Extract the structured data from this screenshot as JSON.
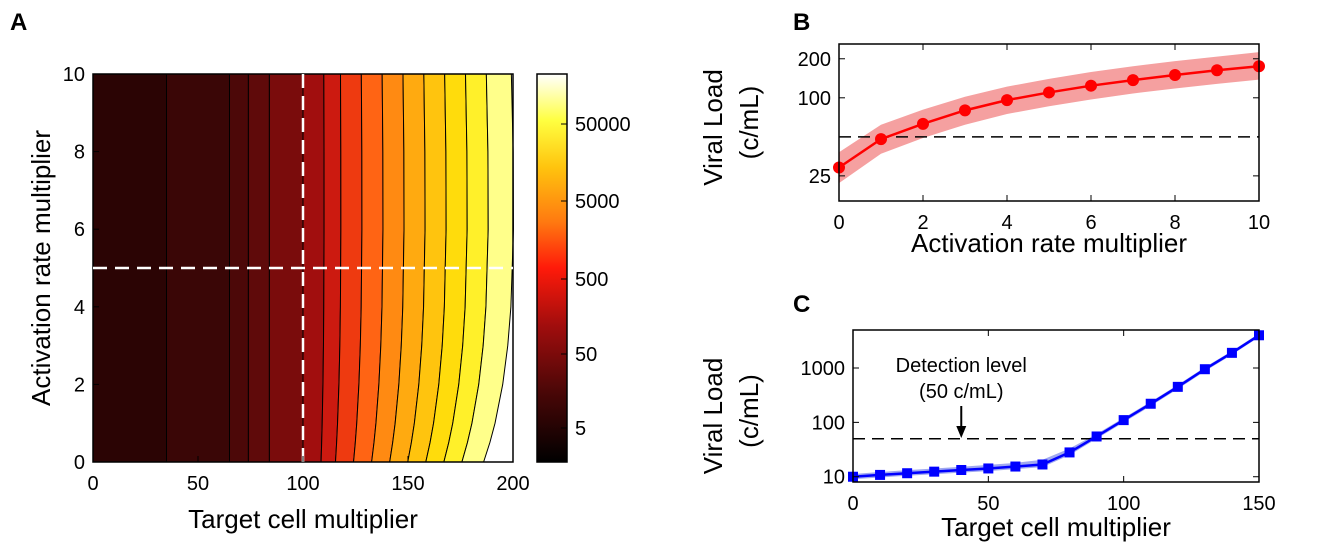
{
  "panels": [
    {
      "id": "A",
      "type": "heatmap",
      "xlabel": "Target cell multiplier",
      "ylabel": "Activation rate multiplier",
      "xlim": [
        0,
        200
      ],
      "ylim": [
        0,
        10
      ],
      "xticks": [
        "0",
        "50",
        "100",
        "150",
        "200"
      ],
      "yticks": [
        "0",
        "2",
        "4",
        "6",
        "8",
        "10"
      ],
      "colorbar": {
        "labels": [
          "5",
          "50",
          "500",
          "5000",
          "50000"
        ],
        "scale": "log",
        "colormap": "hot"
      },
      "reference_lines": {
        "x": 100,
        "y": 5
      },
      "contour_bands": [
        {
          "level": "#2b0404",
          "x_low": 0,
          "x_high": 35
        },
        {
          "level": "#3a0606",
          "x_low": 35,
          "x_high": 65
        },
        {
          "level": "#4c0808",
          "x_low": 65,
          "x_high": 74
        },
        {
          "level": "#5f0a0a",
          "x_low": 74,
          "x_high": 84
        },
        {
          "level": "#7a0c0c",
          "x_low": 84,
          "x_high": 100
        },
        {
          "level": "#a10e0e",
          "x_low": 100,
          "x_high": 110
        },
        {
          "level": "#cc1a10",
          "x_low": 110,
          "x_high": 118
        },
        {
          "level": "#ee3a10",
          "x_low": 118,
          "x_high": 128
        },
        {
          "level": "#ff6414",
          "x_low": 128,
          "x_high": 138
        },
        {
          "level": "#ff8a12",
          "x_low": 138,
          "x_high": 148
        },
        {
          "level": "#ffaa10",
          "x_low": 148,
          "x_high": 158
        },
        {
          "level": "#ffc40e",
          "x_low": 158,
          "x_high": 168
        },
        {
          "level": "#ffdc0c",
          "x_low": 168,
          "x_high": 178
        },
        {
          "level": "#fff02a",
          "x_low": 178,
          "x_high": 188
        },
        {
          "level": "#ffff8a",
          "x_low": 188,
          "x_high": 200
        }
      ]
    },
    {
      "id": "B",
      "type": "line",
      "xlabel": "Activation rate multiplier",
      "ylabel_line1": "Viral Load",
      "ylabel_line2": "(c/mL)",
      "xlim": [
        0,
        10
      ],
      "ylim": [
        16,
        260
      ],
      "yscale": "log",
      "xticks": [
        "0",
        "2",
        "4",
        "6",
        "8",
        "10"
      ],
      "yticks": [
        "25",
        "100",
        "200"
      ],
      "color": "#ff0000",
      "band_color": "#f5a0a0",
      "detection_level": 50,
      "x": [
        0,
        1,
        2,
        3,
        4,
        5,
        6,
        7,
        8,
        9,
        10
      ],
      "y": [
        29,
        48,
        63,
        80,
        96,
        110,
        124,
        137,
        150,
        163,
        175
      ],
      "y_low": [
        22,
        37,
        49,
        62,
        75,
        86,
        97,
        108,
        118,
        128,
        138
      ],
      "y_high": [
        38,
        62,
        81,
        102,
        122,
        140,
        158,
        175,
        192,
        208,
        225
      ]
    },
    {
      "id": "C",
      "type": "line",
      "xlabel": "Target cell multiplier",
      "ylabel_line1": "Viral Load",
      "ylabel_line2": "(c/mL)",
      "xlim": [
        0,
        150
      ],
      "ylim": [
        8,
        5000
      ],
      "yscale": "log",
      "xticks": [
        "0",
        "50",
        "100",
        "150"
      ],
      "yticks": [
        "10",
        "100",
        "1000"
      ],
      "color": "#0000ff",
      "band_color": "#a0a8f0",
      "detection_level": 50,
      "annotation_line1": "Detection level",
      "annotation_line2": "(50 c/mL)",
      "annotation_x": 40,
      "x": [
        0,
        10,
        20,
        30,
        40,
        50,
        60,
        70,
        80,
        90,
        100,
        110,
        120,
        130,
        140,
        150
      ],
      "y": [
        10,
        10.8,
        11.6,
        12.4,
        13.3,
        14.2,
        15.4,
        16.8,
        28,
        55,
        110,
        220,
        450,
        950,
        1900,
        4000
      ],
      "y_low": [
        9,
        9.7,
        10.4,
        11.1,
        11.9,
        12.7,
        13.8,
        15,
        25,
        50,
        100,
        200,
        410,
        870,
        1750,
        3700
      ],
      "y_high": [
        11.2,
        12.2,
        13.2,
        14.2,
        15.3,
        16.5,
        18,
        20.5,
        33,
        61,
        121,
        240,
        490,
        1030,
        2050,
        4300
      ]
    }
  ]
}
